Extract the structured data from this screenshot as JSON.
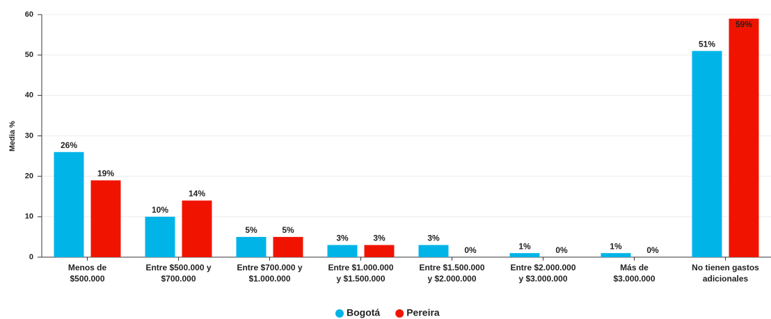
{
  "chart_data": {
    "type": "bar",
    "y_label": "Media %",
    "categories": [
      "Menos de\n$500.000",
      "Entre $500.000 y\n$700.000",
      "Entre $700.000 y\n$1.000.000",
      "Entre $1.000.000\ny $1.500.000",
      "Entre $1.500.000\ny $2.000.000",
      "Entre $2.000.000\ny $3.000.000",
      "Más de\n$3.000.000",
      "No tienen gastos\nadicionales"
    ],
    "series": [
      {
        "name": "Bogotá",
        "color": "#00b4e8",
        "values": [
          26,
          10,
          5,
          3,
          3,
          1,
          1,
          51
        ],
        "value_labels": [
          "26%",
          "10%",
          "5%",
          "3%",
          "3%",
          "1%",
          "1%",
          "51%"
        ]
      },
      {
        "name": "Pereira",
        "color": "#f01400",
        "values": [
          19,
          14,
          5,
          3,
          0,
          0,
          0,
          59
        ],
        "value_labels": [
          "19%",
          "14%",
          "5%",
          "3%",
          "0%",
          "0%",
          "0%",
          "59%"
        ]
      }
    ],
    "ylim": [
      0,
      60
    ],
    "yticks": [
      0,
      10,
      20,
      30,
      40,
      50,
      60
    ],
    "grid": true,
    "legend": "bottom"
  }
}
